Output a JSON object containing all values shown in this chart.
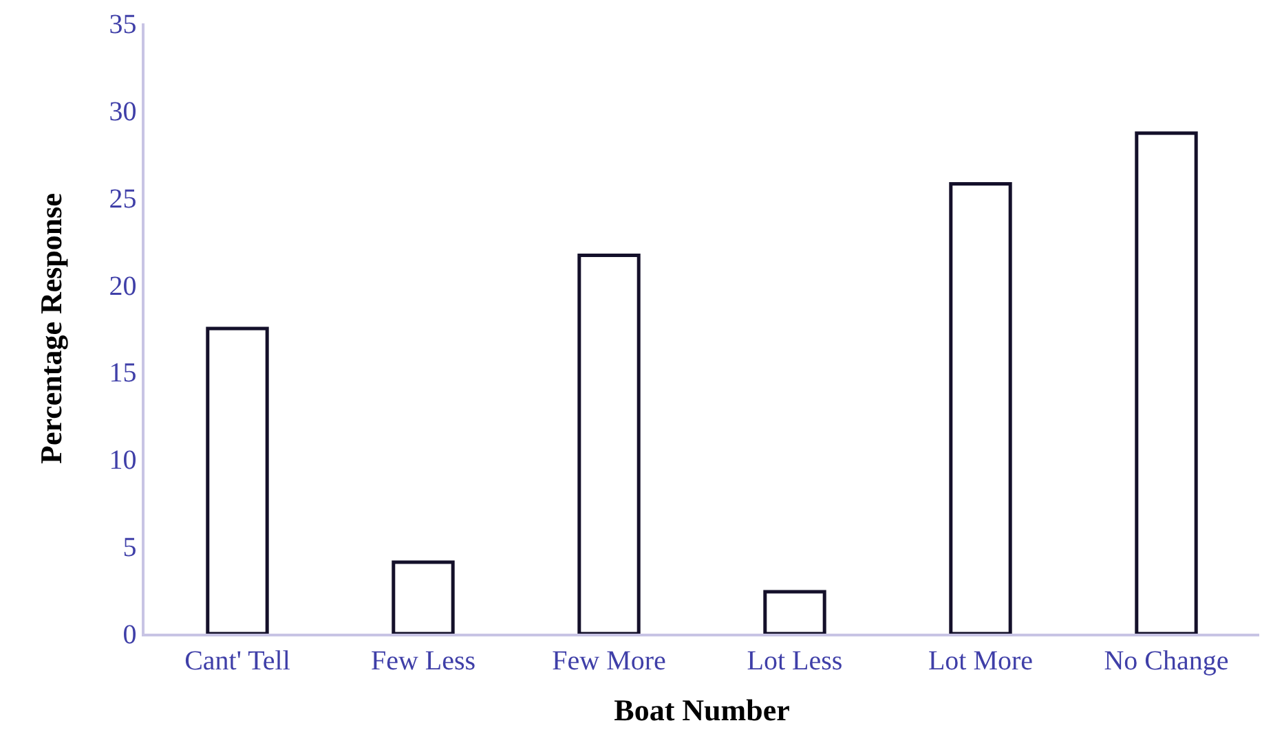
{
  "chart_data": {
    "type": "bar",
    "xlabel": "Boat Number",
    "ylabel": "Percentage Response",
    "categories": [
      "Cant' Tell",
      "Few Less",
      "Few More",
      "Lot Less",
      "Lot More",
      "No Change"
    ],
    "values": [
      17.5,
      4.1,
      21.7,
      2.4,
      25.8,
      28.7
    ],
    "color": "#ffffff",
    "ylim": [
      0,
      35
    ],
    "yticks": [
      0,
      5,
      10,
      15,
      20,
      25,
      30,
      35
    ]
  }
}
